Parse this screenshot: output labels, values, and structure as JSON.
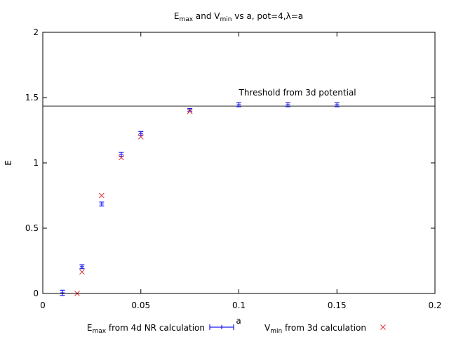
{
  "chart_data": {
    "type": "scatter",
    "title": {
      "parts": [
        {
          "text": "E",
          "sub": false
        },
        {
          "text": "max",
          "sub": true
        },
        {
          "text": " and V",
          "sub": false
        },
        {
          "text": "min",
          "sub": true
        },
        {
          "text": " vs a, pot=4,λ=a",
          "sub": false
        }
      ]
    },
    "xlabel": "a",
    "ylabel": "E",
    "xlim": [
      0,
      0.2
    ],
    "ylim": [
      0,
      2
    ],
    "xticks": [
      {
        "value": 0,
        "label": "0"
      },
      {
        "value": 0.05,
        "label": "0.05"
      },
      {
        "value": 0.1,
        "label": "0.1"
      },
      {
        "value": 0.15,
        "label": "0.15"
      },
      {
        "value": 0.2,
        "label": "0.2"
      }
    ],
    "yticks": [
      {
        "value": 0,
        "label": "0"
      },
      {
        "value": 0.5,
        "label": "0.5"
      },
      {
        "value": 1,
        "label": "1"
      },
      {
        "value": 1.5,
        "label": "1.5"
      },
      {
        "value": 2,
        "label": "2"
      }
    ],
    "grid": false,
    "legend_position": "bottom",
    "series": [
      {
        "name": "E_max from 4d NR calculation",
        "legend": {
          "parts": [
            {
              "text": "E",
              "sub": false
            },
            {
              "text": "max",
              "sub": true
            },
            {
              "text": " from 4d NR calculation",
              "sub": false
            }
          ]
        },
        "style": "points-with-yerrorbars",
        "color": "#1a1aee",
        "points": [
          {
            "x": 0.01,
            "y": 0.005,
            "err": 0.02
          },
          {
            "x": 0.02,
            "y": 0.205,
            "err": 0.015
          },
          {
            "x": 0.03,
            "y": 0.685,
            "err": 0.015
          },
          {
            "x": 0.04,
            "y": 1.065,
            "err": 0.015
          },
          {
            "x": 0.05,
            "y": 1.225,
            "err": 0.015
          },
          {
            "x": 0.075,
            "y": 1.405,
            "err": 0.012
          },
          {
            "x": 0.1,
            "y": 1.445,
            "err": 0.015
          },
          {
            "x": 0.125,
            "y": 1.445,
            "err": 0.015
          },
          {
            "x": 0.15,
            "y": 1.445,
            "err": 0.015
          }
        ]
      },
      {
        "name": "V_min from 3d calculation",
        "legend": {
          "parts": [
            {
              "text": "V",
              "sub": false
            },
            {
              "text": "min",
              "sub": true
            },
            {
              "text": " from 3d calculation",
              "sub": false
            }
          ]
        },
        "style": "x-markers",
        "color": "#e03030",
        "points": [
          {
            "x": 0.0175,
            "y": 0.0
          },
          {
            "x": 0.02,
            "y": 0.165
          },
          {
            "x": 0.03,
            "y": 0.75
          },
          {
            "x": 0.04,
            "y": 1.04
          },
          {
            "x": 0.05,
            "y": 1.2
          },
          {
            "x": 0.075,
            "y": 1.395
          }
        ]
      }
    ],
    "hline": {
      "y": 1.435,
      "label": "Threshold from 3d potential",
      "label_x": 0.1,
      "color": "#555555"
    }
  }
}
